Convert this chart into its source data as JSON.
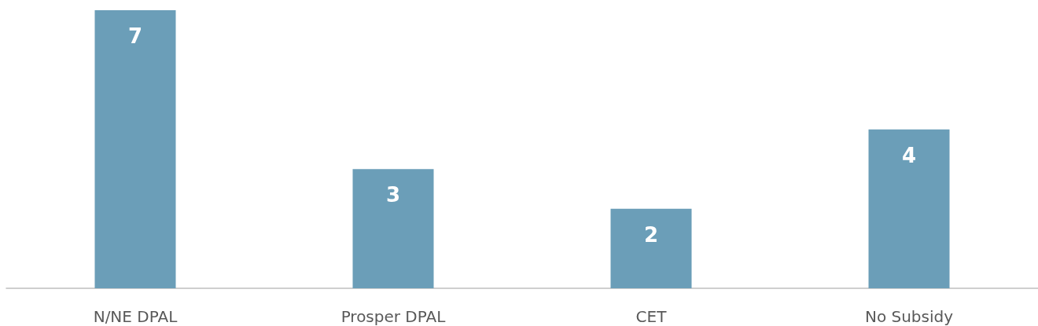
{
  "chart_data": {
    "type": "bar",
    "categories": [
      "N/NE DPAL",
      "Prosper DPAL",
      "CET",
      "No Subsidy"
    ],
    "values": [
      7,
      3,
      2,
      4
    ],
    "color": "#6b9eb8",
    "data_labels": true
  }
}
